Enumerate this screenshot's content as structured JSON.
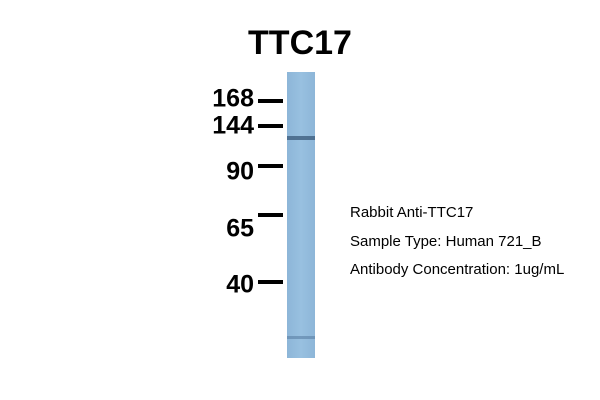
{
  "title": "TTC17",
  "markers": [
    {
      "label": "168"
    },
    {
      "label": "144"
    },
    {
      "label": "90"
    },
    {
      "label": "65"
    },
    {
      "label": "40"
    }
  ],
  "annotations": [
    "Rabbit Anti-TTC17",
    "Sample Type: Human 721_B",
    "Antibody Concentration: 1ug/mL"
  ]
}
